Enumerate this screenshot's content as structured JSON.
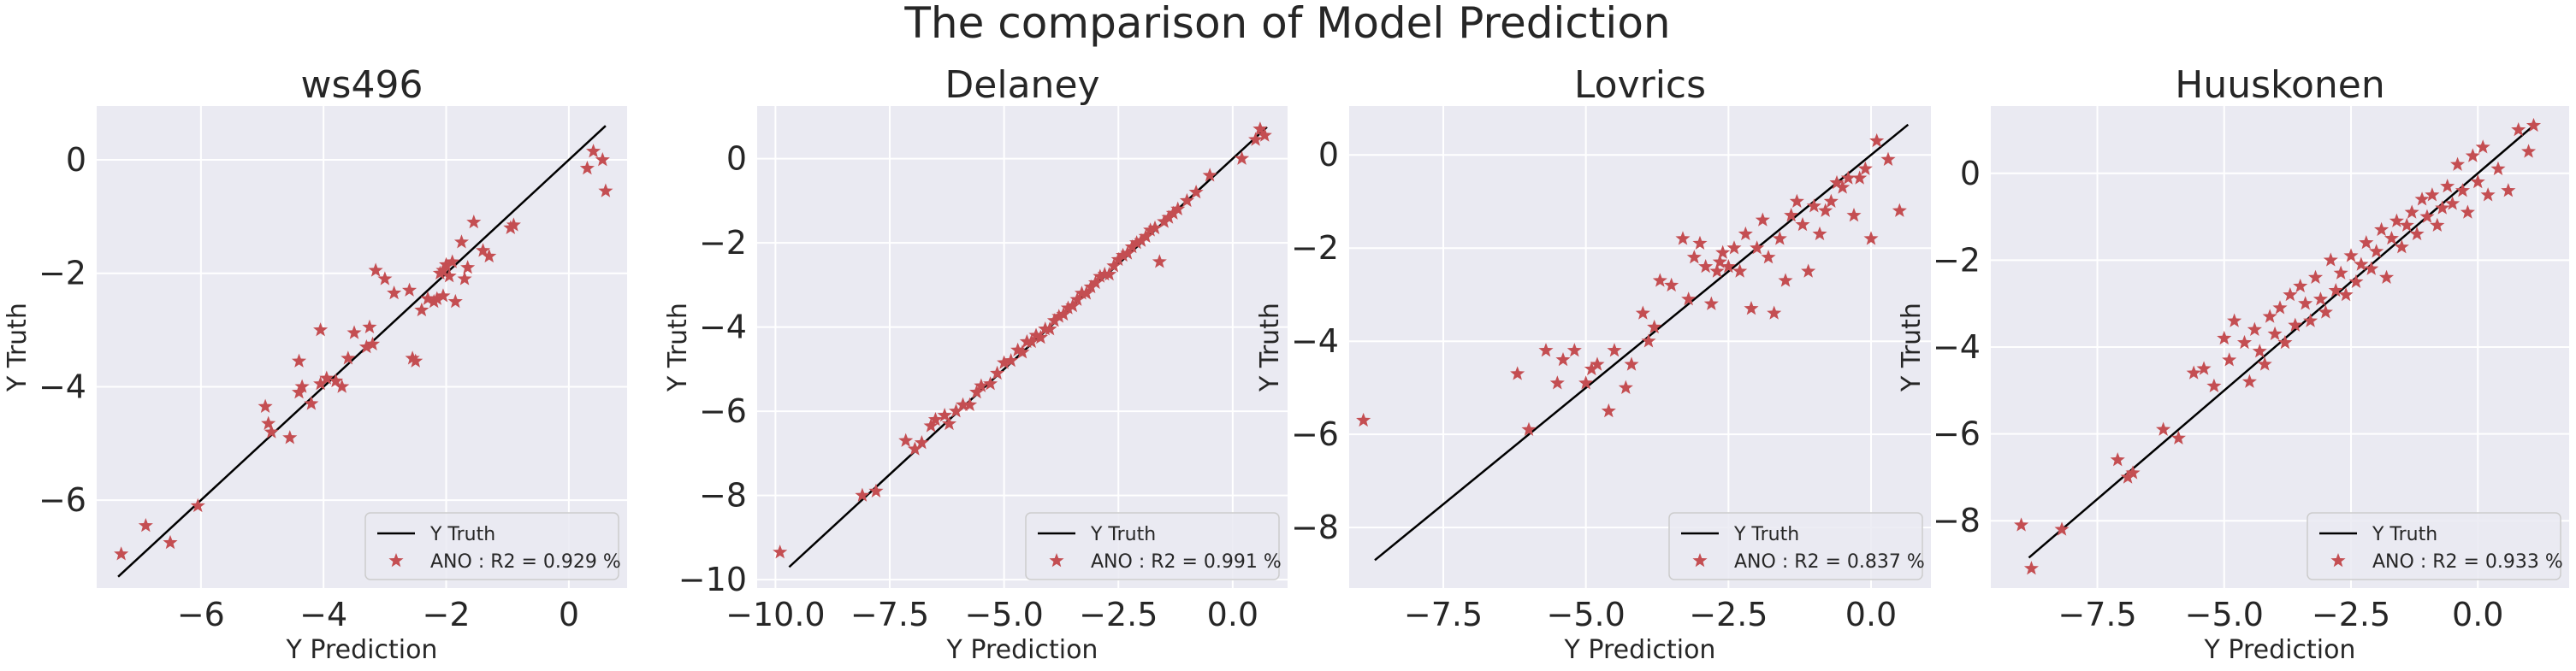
{
  "figure_title": "The comparison of Model Prediction",
  "colors": {
    "panel_bg": "#EAEAF2",
    "grid": "#FFFFFF",
    "point": "#C44E52",
    "line": "#000000",
    "text": "#262626"
  },
  "chart_data": [
    {
      "type": "scatter",
      "title": "ws496",
      "xlabel": "Y Prediction",
      "ylabel": "Y Truth",
      "xlim": [
        -7.7,
        0.95
      ],
      "ylim": [
        -7.55,
        0.95
      ],
      "xticks": [
        -6,
        -4,
        -2,
        0
      ],
      "yticks": [
        -6,
        -4,
        -2,
        0
      ],
      "xtick_labels": [
        "−6",
        "−4",
        "−2",
        "0"
      ],
      "ytick_labels": [
        "−6",
        "−4",
        "−2",
        "0"
      ],
      "legend_position": "lower-right",
      "series": [
        {
          "name": "Y Truth",
          "kind": "line",
          "x": [
            -7.35,
            0.6
          ],
          "y": [
            -7.35,
            0.6
          ]
        },
        {
          "name": "ANO : R2 = 0.929 %",
          "kind": "scatter",
          "marker": "star",
          "x": [
            -7.3,
            -6.9,
            -6.5,
            -6.05,
            -4.95,
            -4.9,
            -4.85,
            -4.55,
            -4.4,
            -4.4,
            -4.35,
            -4.2,
            -4.05,
            -4.05,
            -3.95,
            -3.8,
            -3.7,
            -3.6,
            -3.5,
            -3.3,
            -3.25,
            -3.2,
            -3.15,
            -3.0,
            -2.85,
            -2.6,
            -2.55,
            -2.5,
            -2.4,
            -2.3,
            -2.2,
            -2.15,
            -2.1,
            -2.05,
            -2.05,
            -2.0,
            -1.95,
            -1.9,
            -1.85,
            -1.75,
            -1.7,
            -1.65,
            -1.55,
            -1.4,
            -1.3,
            -0.95,
            -0.9,
            0.3,
            0.4,
            0.55,
            0.6
          ],
          "y": [
            -6.95,
            -6.45,
            -6.75,
            -6.1,
            -4.35,
            -4.65,
            -4.8,
            -4.9,
            -4.1,
            -3.55,
            -4.0,
            -4.3,
            -3.95,
            -3.0,
            -3.85,
            -3.9,
            -4.0,
            -3.5,
            -3.05,
            -3.3,
            -2.95,
            -3.25,
            -1.95,
            -2.1,
            -2.35,
            -2.3,
            -3.5,
            -3.55,
            -2.65,
            -2.45,
            -2.5,
            -2.45,
            -2.0,
            -1.95,
            -2.4,
            -1.85,
            -2.05,
            -1.8,
            -2.5,
            -1.45,
            -2.1,
            -1.9,
            -1.1,
            -1.6,
            -1.7,
            -1.2,
            -1.15,
            -0.15,
            0.15,
            0.0,
            -0.55
          ]
        }
      ]
    },
    {
      "type": "scatter",
      "title": "Delaney",
      "xlabel": "Y Prediction",
      "ylabel": "Y Truth",
      "xlim": [
        -10.4,
        1.2
      ],
      "ylim": [
        -10.2,
        1.25
      ],
      "xticks": [
        -10,
        -7.5,
        -5,
        -2.5,
        0
      ],
      "yticks": [
        -10,
        -8,
        -6,
        -4,
        -2,
        0
      ],
      "xtick_labels": [
        "−10.0",
        "−7.5",
        "−5.0",
        "−2.5",
        "0.0"
      ],
      "ytick_labels": [
        "−10",
        "−8",
        "−6",
        "−4",
        "−2",
        "0"
      ],
      "legend_position": "lower-right",
      "series": [
        {
          "name": "Y Truth",
          "kind": "line",
          "x": [
            -9.7,
            0.75
          ],
          "y": [
            -9.7,
            0.75
          ]
        },
        {
          "name": "ANO : R2 = 0.991 %",
          "kind": "scatter",
          "marker": "star",
          "x": [
            -9.9,
            -8.1,
            -7.8,
            -7.15,
            -6.95,
            -6.8,
            -6.6,
            -6.5,
            -6.3,
            -6.2,
            -6.05,
            -5.9,
            -5.75,
            -5.6,
            -5.5,
            -5.3,
            -5.15,
            -5.0,
            -4.85,
            -4.7,
            -4.6,
            -4.5,
            -4.4,
            -4.3,
            -4.2,
            -4.1,
            -4.0,
            -3.9,
            -3.8,
            -3.7,
            -3.6,
            -3.5,
            -3.4,
            -3.3,
            -3.2,
            -3.1,
            -3.0,
            -2.9,
            -2.8,
            -2.7,
            -2.6,
            -2.5,
            -2.4,
            -2.3,
            -2.2,
            -2.1,
            -2.0,
            -1.9,
            -1.8,
            -1.7,
            -1.6,
            -1.5,
            -1.4,
            -1.3,
            -1.2,
            -1.0,
            -0.8,
            -0.5,
            0.2,
            0.5,
            0.6,
            0.7
          ],
          "y": [
            -9.35,
            -8.0,
            -7.9,
            -6.7,
            -6.9,
            -6.75,
            -6.35,
            -6.2,
            -6.1,
            -6.3,
            -6.0,
            -5.85,
            -5.85,
            -5.55,
            -5.4,
            -5.35,
            -5.1,
            -4.85,
            -4.8,
            -4.55,
            -4.6,
            -4.35,
            -4.35,
            -4.2,
            -4.25,
            -4.05,
            -4.05,
            -3.85,
            -3.75,
            -3.7,
            -3.55,
            -3.5,
            -3.35,
            -3.2,
            -3.2,
            -3.05,
            -2.95,
            -2.8,
            -2.75,
            -2.75,
            -2.55,
            -2.4,
            -2.3,
            -2.25,
            -2.1,
            -2.0,
            -1.95,
            -1.85,
            -1.7,
            -1.65,
            -2.45,
            -1.5,
            -1.4,
            -1.3,
            -1.2,
            -1.0,
            -0.8,
            -0.4,
            0.0,
            0.45,
            0.7,
            0.55
          ]
        }
      ]
    },
    {
      "type": "scatter",
      "title": "Lovrics",
      "xlabel": "Y Prediction",
      "ylabel": "Y Truth",
      "xlim": [
        -9.15,
        1.05
      ],
      "ylim": [
        -9.3,
        1.05
      ],
      "xticks": [
        -7.5,
        -5,
        -2.5,
        0
      ],
      "yticks": [
        -8,
        -6,
        -4,
        -2,
        0
      ],
      "xtick_labels": [
        "−7.5",
        "−5.0",
        "−2.5",
        "0.0"
      ],
      "ytick_labels": [
        "−8",
        "−6",
        "−4",
        "−2",
        "0"
      ],
      "legend_position": "lower-right",
      "series": [
        {
          "name": "Y Truth",
          "kind": "line",
          "x": [
            -8.7,
            0.65
          ],
          "y": [
            -8.7,
            0.65
          ]
        },
        {
          "name": "ANO : R2 = 0.837 %",
          "kind": "scatter",
          "marker": "star",
          "x": [
            -8.9,
            -6.2,
            -6.0,
            -5.7,
            -5.5,
            -5.4,
            -5.2,
            -5.0,
            -4.9,
            -4.8,
            -4.6,
            -4.5,
            -4.3,
            -4.2,
            -4.0,
            -3.9,
            -3.8,
            -3.7,
            -3.5,
            -3.3,
            -3.2,
            -3.1,
            -3.0,
            -2.9,
            -2.8,
            -2.7,
            -2.65,
            -2.6,
            -2.5,
            -2.4,
            -2.3,
            -2.2,
            -2.1,
            -2.0,
            -1.9,
            -1.8,
            -1.7,
            -1.6,
            -1.5,
            -1.4,
            -1.3,
            -1.2,
            -1.1,
            -1.0,
            -0.9,
            -0.8,
            -0.7,
            -0.6,
            -0.5,
            -0.4,
            -0.3,
            -0.2,
            -0.1,
            0.0,
            0.1,
            0.3,
            0.5
          ],
          "y": [
            -5.7,
            -4.7,
            -5.9,
            -4.2,
            -4.9,
            -4.4,
            -4.2,
            -4.9,
            -4.6,
            -4.5,
            -5.5,
            -4.2,
            -5.0,
            -4.5,
            -3.4,
            -4.0,
            -3.7,
            -2.7,
            -2.8,
            -1.8,
            -3.1,
            -2.2,
            -1.9,
            -2.4,
            -3.2,
            -2.5,
            -2.3,
            -2.1,
            -2.4,
            -2.0,
            -2.5,
            -1.7,
            -3.3,
            -2.0,
            -1.4,
            -2.2,
            -3.4,
            -1.8,
            -2.7,
            -1.3,
            -1.0,
            -1.5,
            -2.5,
            -1.1,
            -1.7,
            -1.2,
            -1.0,
            -0.6,
            -0.7,
            -0.5,
            -1.3,
            -0.5,
            -0.3,
            -1.8,
            0.3,
            -0.1,
            -1.2
          ]
        }
      ]
    },
    {
      "type": "scatter",
      "title": "Huuskonen",
      "xlabel": "Y Prediction",
      "ylabel": "Y Truth",
      "xlim": [
        -9.6,
        1.8
      ],
      "ylim": [
        -9.55,
        1.55
      ],
      "xticks": [
        -7.5,
        -5,
        -2.5,
        0
      ],
      "yticks": [
        -8,
        -6,
        -4,
        -2,
        0
      ],
      "xtick_labels": [
        "−7.5",
        "−5.0",
        "−2.5",
        "0.0"
      ],
      "ytick_labels": [
        "−8",
        "−6",
        "−4",
        "−2",
        "0"
      ],
      "legend_position": "lower-right",
      "series": [
        {
          "name": "Y Truth",
          "kind": "line",
          "x": [
            -8.85,
            1.15
          ],
          "y": [
            -8.85,
            1.15
          ]
        },
        {
          "name": "ANO : R2 = 0.933 %",
          "kind": "scatter",
          "marker": "star",
          "x": [
            -9.0,
            -8.8,
            -8.2,
            -7.1,
            -6.9,
            -6.8,
            -6.2,
            -5.9,
            -5.6,
            -5.4,
            -5.2,
            -5.0,
            -4.9,
            -4.8,
            -4.6,
            -4.5,
            -4.4,
            -4.3,
            -4.2,
            -4.1,
            -4.0,
            -3.9,
            -3.8,
            -3.7,
            -3.6,
            -3.5,
            -3.4,
            -3.3,
            -3.2,
            -3.1,
            -3.0,
            -2.9,
            -2.8,
            -2.7,
            -2.6,
            -2.5,
            -2.4,
            -2.3,
            -2.2,
            -2.1,
            -2.0,
            -1.9,
            -1.8,
            -1.7,
            -1.6,
            -1.5,
            -1.4,
            -1.3,
            -1.2,
            -1.1,
            -1.0,
            -0.9,
            -0.8,
            -0.7,
            -0.6,
            -0.5,
            -0.4,
            -0.3,
            -0.2,
            -0.1,
            0.0,
            0.1,
            0.2,
            0.4,
            0.6,
            0.8,
            1.0,
            1.1
          ],
          "y": [
            -8.1,
            -9.1,
            -8.2,
            -6.6,
            -7.0,
            -6.9,
            -5.9,
            -6.1,
            -4.6,
            -4.5,
            -4.9,
            -3.8,
            -4.3,
            -3.4,
            -3.9,
            -4.8,
            -3.6,
            -4.1,
            -4.4,
            -3.3,
            -3.7,
            -3.1,
            -3.9,
            -2.8,
            -3.5,
            -2.6,
            -3.0,
            -3.4,
            -2.4,
            -2.9,
            -3.2,
            -2.0,
            -2.7,
            -2.3,
            -2.8,
            -1.9,
            -2.5,
            -2.1,
            -1.6,
            -2.2,
            -1.8,
            -1.3,
            -2.4,
            -1.5,
            -1.1,
            -1.7,
            -1.2,
            -0.9,
            -1.4,
            -0.6,
            -1.0,
            -0.5,
            -1.2,
            -0.8,
            -0.3,
            -0.7,
            0.2,
            -0.4,
            -0.9,
            0.4,
            -0.2,
            0.6,
            -0.5,
            0.1,
            -0.4,
            1.0,
            0.5,
            1.1
          ]
        }
      ]
    }
  ]
}
